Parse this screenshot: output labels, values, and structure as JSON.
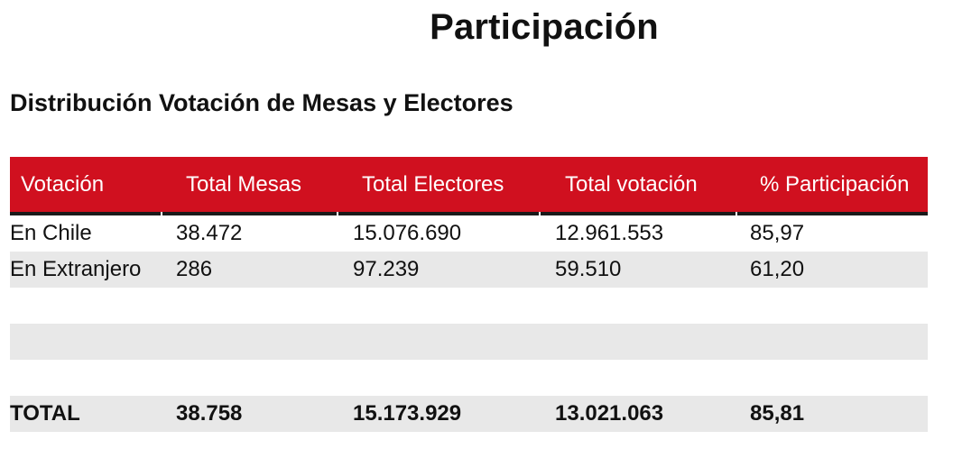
{
  "page_title": "Participación",
  "section_title": "Distribución Votación de Mesas y Electores",
  "table": {
    "headers": [
      "Votación",
      "Total Mesas",
      "Total Electores",
      "Total votación",
      "% Participación"
    ],
    "rows": [
      [
        "En Chile",
        "38.472",
        "15.076.690",
        "12.961.553",
        "85,97"
      ],
      [
        "En Extranjero",
        "286",
        "97.239",
        "59.510",
        "61,20"
      ]
    ],
    "total": [
      "TOTAL",
      "38.758",
      "15.173.929",
      "13.021.063",
      "85,81"
    ]
  },
  "colors": {
    "header_background": "#d0101f",
    "header_text": "#ffffff",
    "row_stripe": "#e8e8e8",
    "header_underline": "#1a1a1a"
  }
}
